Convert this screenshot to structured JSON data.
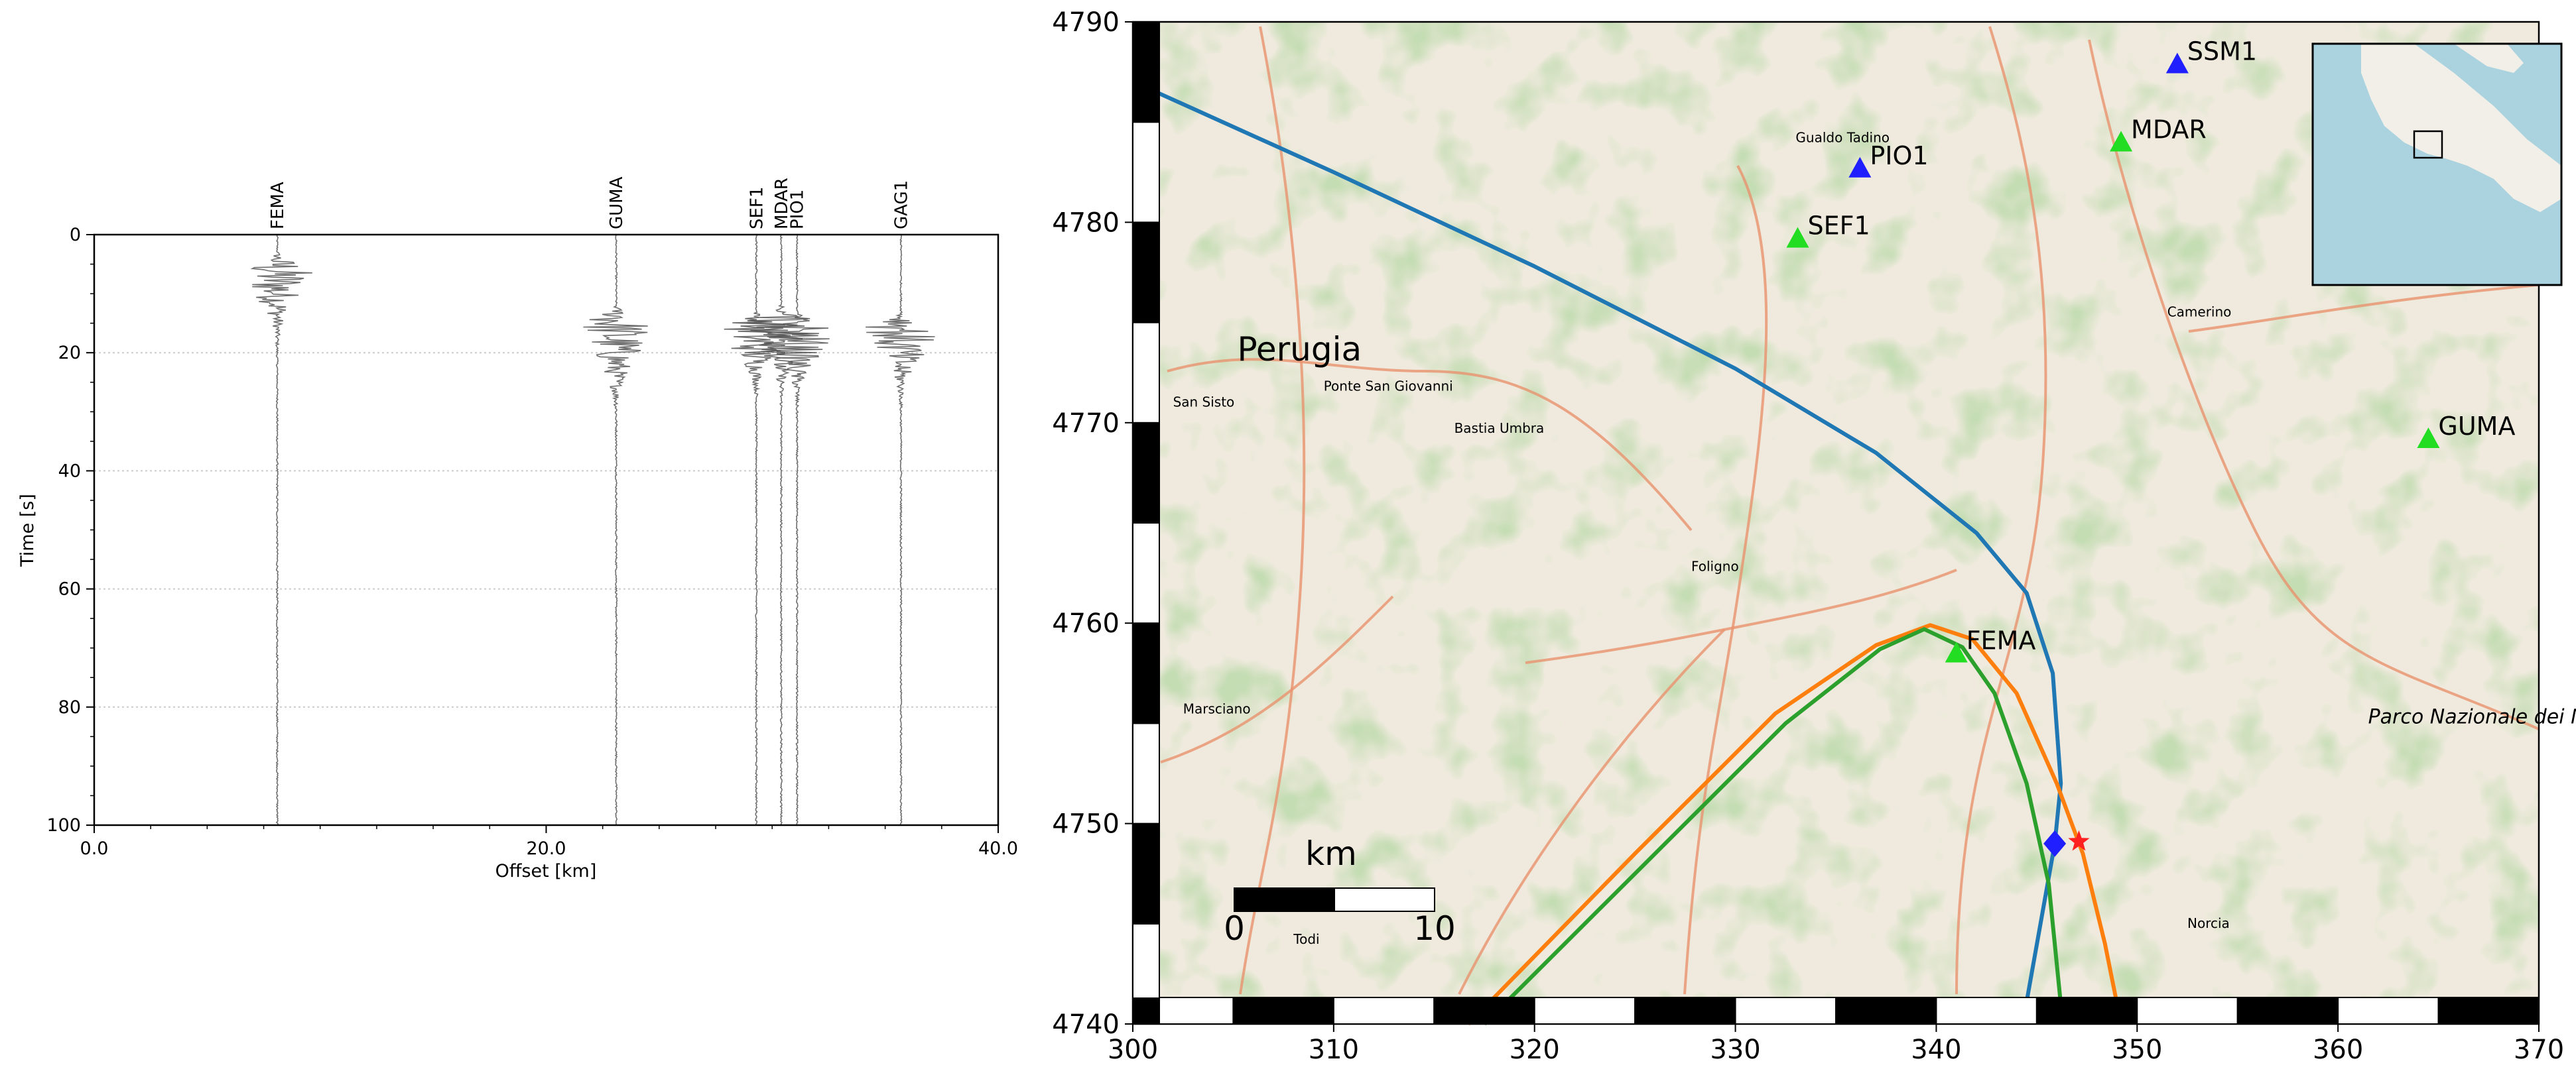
{
  "chart_data": [
    {
      "type": "seismic-record-section",
      "xlabel": "Offset [km]",
      "ylabel": "Time [s]",
      "xlim": [
        0,
        40
      ],
      "ylim": [
        100,
        0
      ],
      "xticks": [
        0,
        20,
        40
      ],
      "xtick_labels": [
        "0.0",
        "20.0",
        "40.0"
      ],
      "yticks": [
        0,
        20,
        40,
        60,
        80,
        100
      ],
      "ytick_labels": [
        "0",
        "20",
        "40",
        "60",
        "80",
        "100"
      ],
      "grid": "y",
      "trace_color": "#555555",
      "traces": [
        {
          "station": "FEMA",
          "offset": 8.1,
          "peak_time": 6,
          "duration": 18
        },
        {
          "station": "GUMA",
          "offset": 23.1,
          "peak_time": 15,
          "duration": 22
        },
        {
          "station": "SEF1",
          "offset": 29.3,
          "peak_time": 16,
          "duration": 16
        },
        {
          "station": "MDAR",
          "offset": 30.4,
          "peak_time": 15,
          "duration": 18
        },
        {
          "station": "PIO1",
          "offset": 31.1,
          "peak_time": 16,
          "duration": 18
        },
        {
          "station": "GAG1",
          "offset": 35.7,
          "peak_time": 16,
          "duration": 18
        }
      ]
    },
    {
      "type": "map",
      "xlim": [
        300,
        370
      ],
      "ylim": [
        4740,
        4790
      ],
      "xticks": [
        300,
        310,
        320,
        330,
        340,
        350,
        360,
        370
      ],
      "yticks": [
        4740,
        4750,
        4760,
        4770,
        4780,
        4790
      ],
      "scalebar": {
        "unit": "km",
        "labels": [
          "0",
          "10"
        ],
        "x": 305,
        "y": 4746.2,
        "length": 10
      },
      "stations": [
        {
          "name": "SSM1",
          "x": 352.0,
          "y": 4787.9,
          "color": "#1f1fff"
        },
        {
          "name": "MDAR",
          "x": 349.2,
          "y": 4784.0,
          "color": "#22dd22"
        },
        {
          "name": "PIO1",
          "x": 336.2,
          "y": 4782.7,
          "color": "#1f1fff"
        },
        {
          "name": "SEF1",
          "x": 333.1,
          "y": 4779.2,
          "color": "#22dd22"
        },
        {
          "name": "GUMA",
          "x": 364.5,
          "y": 4769.2,
          "color": "#22dd22"
        },
        {
          "name": "FEMA",
          "x": 341.0,
          "y": 4758.5,
          "color": "#22dd22"
        }
      ],
      "epicenter": {
        "x": 347.1,
        "y": 4749.1,
        "color": "#ff2020"
      },
      "estimate": {
        "x": 345.9,
        "y": 4749.0,
        "color": "#1f1fff"
      },
      "curves": [
        {
          "color": "#1f77b4",
          "points": [
            [
              300.5,
              4786.8
            ],
            [
              310,
              4782.5
            ],
            [
              320,
              4777.8
            ],
            [
              330,
              4772.7
            ],
            [
              337,
              4768.5
            ],
            [
              342,
              4764.5
            ],
            [
              344.5,
              4761.5
            ],
            [
              345.8,
              4757.5
            ],
            [
              346.2,
              4752
            ],
            [
              345.9,
              4749
            ],
            [
              344.3,
              4740
            ]
          ]
        },
        {
          "color": "#ff7f0e",
          "points": [
            [
              316.7,
              4740
            ],
            [
              325,
              4748.5
            ],
            [
              332,
              4755.5
            ],
            [
              337,
              4758.9
            ],
            [
              339.7,
              4759.9
            ],
            [
              341.8,
              4759.2
            ],
            [
              344,
              4756.5
            ],
            [
              346,
              4752
            ],
            [
              347.3,
              4748.5
            ],
            [
              348.4,
              4744
            ],
            [
              349.2,
              4740
            ]
          ]
        },
        {
          "color": "#2ca02c",
          "points": [
            [
              317.5,
              4740
            ],
            [
              325.5,
              4748
            ],
            [
              332.5,
              4755
            ],
            [
              337.2,
              4758.7
            ],
            [
              339.4,
              4759.7
            ],
            [
              341.3,
              4758.8
            ],
            [
              342.9,
              4756.5
            ],
            [
              344.5,
              4752
            ],
            [
              345.6,
              4747
            ],
            [
              346.3,
              4740
            ]
          ]
        }
      ],
      "places": [
        {
          "name": "Perugia",
          "x": 305.2,
          "y": 4773.1,
          "size": "large"
        },
        {
          "name": "Gualdo Tadino",
          "x": 333.0,
          "y": 4784.0
        },
        {
          "name": "Ponte San Giovanni",
          "x": 309.5,
          "y": 4771.6
        },
        {
          "name": "San Sisto",
          "x": 302.0,
          "y": 4770.8
        },
        {
          "name": "Bastia Umbra",
          "x": 316.0,
          "y": 4769.5
        },
        {
          "name": "Foligno",
          "x": 327.8,
          "y": 4762.6
        },
        {
          "name": "Marsciano",
          "x": 302.5,
          "y": 4755.5
        },
        {
          "name": "Todi",
          "x": 308.0,
          "y": 4744.0
        },
        {
          "name": "Camerino",
          "x": 351.5,
          "y": 4775.3
        },
        {
          "name": "Norcia",
          "x": 352.5,
          "y": 4744.8
        },
        {
          "name": "Parco Nazionale dei Monti Sibillini",
          "x": 361.5,
          "y": 4755.0,
          "green": true
        }
      ]
    }
  ]
}
